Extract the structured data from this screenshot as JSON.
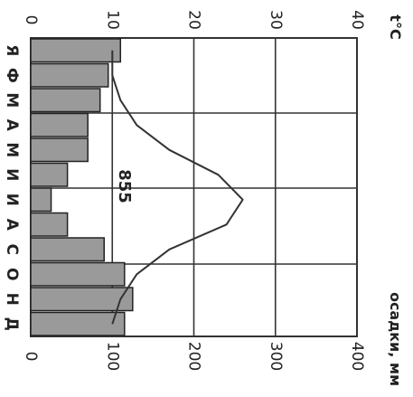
{
  "chart_data": {
    "type": "bar",
    "subtype": "climate diagram (bars = precipitation, line = temperature), rotated 90 degrees clockwise",
    "categories": [
      "Я",
      "Ф",
      "М",
      "А",
      "М",
      "И",
      "И",
      "А",
      "С",
      "О",
      "Н",
      "Д"
    ],
    "series": [
      {
        "name": "осадки, мм",
        "kind": "bar",
        "axis": "bottom",
        "values": [
          110,
          95,
          85,
          70,
          70,
          45,
          25,
          45,
          90,
          115,
          125,
          115
        ]
      },
      {
        "name": "t°C",
        "kind": "line",
        "axis": "top",
        "values": [
          10,
          10,
          11,
          13,
          17,
          23,
          26,
          24,
          17,
          13,
          11,
          10
        ]
      }
    ],
    "temp_axis": {
      "label": "t°C",
      "ticks": [
        "0",
        "10",
        "20",
        "30",
        "40"
      ],
      "range": [
        0,
        40
      ]
    },
    "precip_axis": {
      "label": "осадки, мм",
      "ticks": [
        "0",
        "100",
        "200",
        "300",
        "400"
      ],
      "range": [
        0,
        400
      ]
    },
    "annotation": "855",
    "grid": true,
    "colors": {
      "bar": "#9a9a9a",
      "line": "#333333",
      "grid": "#333333"
    }
  }
}
